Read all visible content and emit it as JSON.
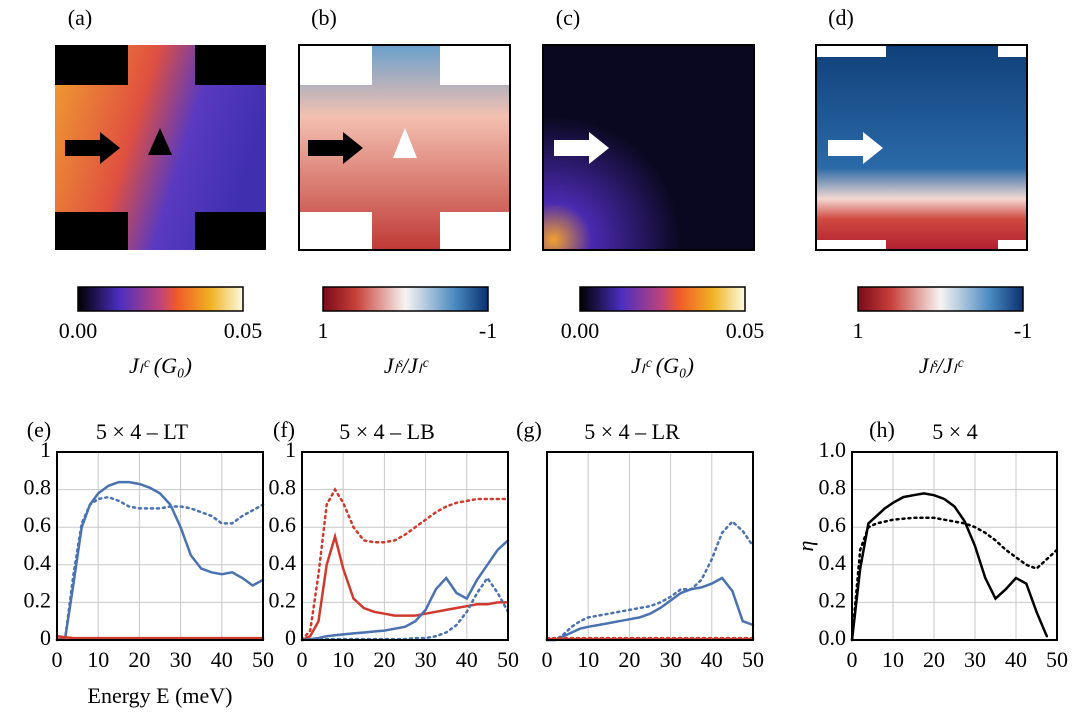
{
  "maps": [
    {
      "label": "(a)",
      "colorbar": {
        "ticks": [
          "0.00",
          "0.05"
        ],
        "label": "Jₗᶜ (G₀)"
      }
    },
    {
      "label": "(b)",
      "colorbar": {
        "ticks": [
          "1",
          "-1"
        ],
        "label": "Jₗˢ/Jₗᶜ"
      }
    },
    {
      "label": "(c)",
      "colorbar": {
        "ticks": [
          "0.00",
          "0.05"
        ],
        "label": "Jₗᶜ (G₀)"
      }
    },
    {
      "label": "(d)",
      "colorbar": {
        "ticks": [
          "1",
          "-1"
        ],
        "label": "Jₗˢ/Jₗᶜ"
      }
    }
  ],
  "chart_data": [
    {
      "type": "line",
      "label": "(e)",
      "title": "5 × 4 – LT",
      "xlabel": "Energy E (meV)",
      "x": [
        0,
        2,
        4,
        6,
        8,
        10,
        12.5,
        15,
        17.5,
        20,
        22.5,
        25,
        27.5,
        30,
        32.5,
        35,
        37.5,
        40,
        42.5,
        45,
        47.5,
        50
      ],
      "xlim": [
        0,
        50
      ],
      "xticks": [
        0,
        10,
        20,
        30,
        40,
        50
      ],
      "ylim": [
        0,
        1
      ],
      "yticks": [
        0,
        0.2,
        0.4,
        0.6,
        0.8,
        1
      ],
      "grid": true,
      "series": [
        {
          "color": "#4a72b0",
          "style": "solid",
          "values": [
            0,
            0.01,
            0.3,
            0.6,
            0.72,
            0.78,
            0.82,
            0.84,
            0.84,
            0.83,
            0.81,
            0.78,
            0.72,
            0.6,
            0.45,
            0.38,
            0.36,
            0.35,
            0.36,
            0.33,
            0.29,
            0.32
          ]
        },
        {
          "color": "#4a72b0",
          "style": "dotted",
          "values": [
            0,
            0.01,
            0.35,
            0.62,
            0.72,
            0.75,
            0.76,
            0.74,
            0.71,
            0.7,
            0.7,
            0.7,
            0.71,
            0.71,
            0.7,
            0.68,
            0.66,
            0.62,
            0.62,
            0.66,
            0.69,
            0.72
          ]
        },
        {
          "color": "#d03a2c",
          "style": "solid",
          "values": [
            0.02,
            0.015,
            0.01,
            0.01,
            0.01,
            0.01,
            0.01,
            0.01,
            0.01,
            0.01,
            0.01,
            0.01,
            0.01,
            0.01,
            0.01,
            0.01,
            0.01,
            0.01,
            0.01,
            0.01,
            0.01,
            0.01
          ]
        },
        {
          "color": "#d03a2c",
          "style": "dotted",
          "values": [
            0.005,
            0.005,
            0.005,
            0.005,
            0.005,
            0.005,
            0.005,
            0.005,
            0.005,
            0.005,
            0.005,
            0.005,
            0.005,
            0.005,
            0.005,
            0.005,
            0.005,
            0.005,
            0.005,
            0.005,
            0.005,
            0.005
          ]
        }
      ]
    },
    {
      "type": "line",
      "label": "(f)",
      "title": "5 × 4 – LB",
      "x": [
        0,
        2,
        4,
        6,
        8,
        10,
        12.5,
        15,
        17.5,
        20,
        22.5,
        25,
        27.5,
        30,
        32.5,
        35,
        37.5,
        40,
        42.5,
        45,
        47.5,
        50
      ],
      "xlim": [
        0,
        50
      ],
      "xticks": [
        0,
        10,
        20,
        30,
        40,
        50
      ],
      "ylim": [
        0,
        1
      ],
      "yticks": [
        0,
        0.2,
        0.4,
        0.6,
        0.8,
        1
      ],
      "grid": true,
      "series": [
        {
          "color": "#d03a2c",
          "style": "dotted",
          "values": [
            0,
            0.05,
            0.35,
            0.72,
            0.8,
            0.73,
            0.6,
            0.53,
            0.52,
            0.52,
            0.53,
            0.56,
            0.6,
            0.64,
            0.68,
            0.71,
            0.73,
            0.74,
            0.75,
            0.75,
            0.75,
            0.75
          ]
        },
        {
          "color": "#d03a2c",
          "style": "solid",
          "values": [
            0,
            0.02,
            0.1,
            0.4,
            0.55,
            0.38,
            0.22,
            0.17,
            0.15,
            0.14,
            0.13,
            0.13,
            0.13,
            0.14,
            0.15,
            0.16,
            0.17,
            0.18,
            0.19,
            0.19,
            0.2,
            0.2
          ]
        },
        {
          "color": "#4a72b0",
          "style": "solid",
          "values": [
            0,
            0.005,
            0.01,
            0.02,
            0.025,
            0.03,
            0.035,
            0.04,
            0.045,
            0.05,
            0.06,
            0.07,
            0.1,
            0.16,
            0.27,
            0.33,
            0.25,
            0.22,
            0.32,
            0.4,
            0.48,
            0.53
          ]
        },
        {
          "color": "#4a72b0",
          "style": "dotted",
          "values": [
            0,
            0.005,
            0.005,
            0.005,
            0.005,
            0.005,
            0.005,
            0.005,
            0.005,
            0.005,
            0.005,
            0.005,
            0.01,
            0.01,
            0.02,
            0.04,
            0.08,
            0.15,
            0.25,
            0.33,
            0.25,
            0.15
          ]
        }
      ]
    },
    {
      "type": "line",
      "label": "(g)",
      "title": "5 × 4 – LR",
      "x": [
        0,
        2,
        4,
        6,
        8,
        10,
        12.5,
        15,
        17.5,
        20,
        22.5,
        25,
        27.5,
        30,
        32.5,
        35,
        37.5,
        40,
        42.5,
        45,
        47.5,
        50
      ],
      "xlim": [
        0,
        50
      ],
      "xticks": [
        0,
        10,
        20,
        30,
        40,
        50
      ],
      "ylim": [
        0,
        1
      ],
      "yticks": [],
      "grid": true,
      "series": [
        {
          "color": "#4a72b0",
          "style": "solid",
          "values": [
            0,
            0,
            0.02,
            0.04,
            0.06,
            0.07,
            0.08,
            0.09,
            0.1,
            0.11,
            0.12,
            0.14,
            0.17,
            0.21,
            0.25,
            0.27,
            0.28,
            0.3,
            0.33,
            0.26,
            0.1,
            0.08
          ]
        },
        {
          "color": "#4a72b0",
          "style": "dotted",
          "values": [
            0,
            0,
            0.03,
            0.07,
            0.1,
            0.12,
            0.13,
            0.14,
            0.15,
            0.16,
            0.17,
            0.18,
            0.2,
            0.23,
            0.27,
            0.27,
            0.32,
            0.43,
            0.57,
            0.63,
            0.58,
            0.5
          ]
        },
        {
          "color": "#d03a2c",
          "style": "solid",
          "values": [
            0.005,
            0.005,
            0.005,
            0.005,
            0.005,
            0.005,
            0.005,
            0.005,
            0.005,
            0.005,
            0.005,
            0.005,
            0.005,
            0.005,
            0.005,
            0.005,
            0.005,
            0.005,
            0.005,
            0.005,
            0.005,
            0.005
          ]
        },
        {
          "color": "#d03a2c",
          "style": "dotted",
          "values": [
            0.01,
            0.01,
            0.01,
            0.01,
            0.01,
            0.01,
            0.01,
            0.01,
            0.01,
            0.01,
            0.01,
            0.01,
            0.01,
            0.01,
            0.01,
            0.01,
            0.01,
            0.01,
            0.01,
            0.01,
            0.01,
            0.01
          ]
        }
      ]
    },
    {
      "type": "line",
      "label": "(h)",
      "title": "5 × 4",
      "ylabel": "η",
      "x": [
        0,
        2,
        4,
        6,
        8,
        10,
        12.5,
        15,
        17.5,
        20,
        22.5,
        25,
        27.5,
        30,
        32.5,
        35,
        37.5,
        40,
        42.5,
        45,
        47.5,
        50
      ],
      "xlim": [
        0,
        50
      ],
      "xticks": [
        0,
        10,
        20,
        30,
        40,
        50
      ],
      "ylim": [
        0,
        1
      ],
      "yticks": [
        {
          "value": 0,
          "label": "0.0"
        },
        0.2,
        0.4,
        0.6,
        0.8,
        {
          "value": 1,
          "label": "1.0"
        }
      ],
      "grid": true,
      "series": [
        {
          "color": "#000000",
          "style": "solid",
          "values": [
            0,
            0.38,
            0.62,
            0.66,
            0.7,
            0.73,
            0.76,
            0.77,
            0.78,
            0.77,
            0.75,
            0.71,
            0.63,
            0.5,
            0.33,
            0.22,
            0.27,
            0.33,
            0.3,
            0.15,
            0.02,
            null
          ]
        },
        {
          "color": "#000000",
          "style": "dotted",
          "values": [
            0,
            0.48,
            0.6,
            0.62,
            0.63,
            0.64,
            0.645,
            0.65,
            0.65,
            0.65,
            0.64,
            0.63,
            0.62,
            0.6,
            0.57,
            0.53,
            0.48,
            0.44,
            0.4,
            0.38,
            0.43,
            0.48
          ]
        }
      ]
    }
  ]
}
